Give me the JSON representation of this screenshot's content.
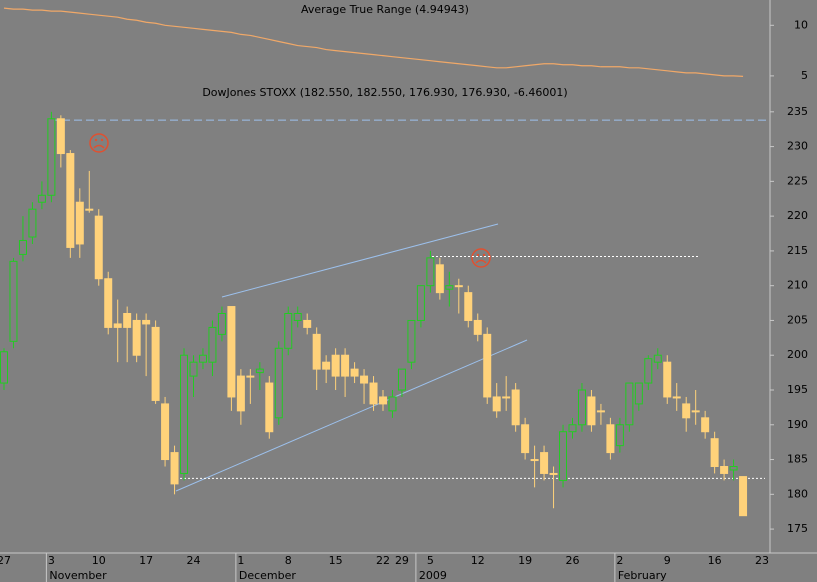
{
  "chart_data": [
    {
      "type": "line",
      "title": "Average True Range (4.94943)",
      "color": "#f0a868",
      "ylim": [
        4.1,
        12.5
      ],
      "yticks": [
        10,
        5
      ],
      "values": [
        11.7,
        11.6,
        11.6,
        11.5,
        11.5,
        11.4,
        11.4,
        11.3,
        11.2,
        11.1,
        11.0,
        10.9,
        10.8,
        10.6,
        10.5,
        10.3,
        10.2,
        10.0,
        9.9,
        9.8,
        9.7,
        9.6,
        9.5,
        9.4,
        9.3,
        9.1,
        9.0,
        8.8,
        8.6,
        8.4,
        8.2,
        8.0,
        7.9,
        7.8,
        7.6,
        7.5,
        7.4,
        7.3,
        7.2,
        7.1,
        7.0,
        6.9,
        6.8,
        6.7,
        6.6,
        6.5,
        6.4,
        6.3,
        6.2,
        6.1,
        6.0,
        5.9,
        5.8,
        5.8,
        5.9,
        6.0,
        6.1,
        6.2,
        6.2,
        6.1,
        6.1,
        6.0,
        6.0,
        5.9,
        5.9,
        5.9,
        5.8,
        5.8,
        5.7,
        5.6,
        5.5,
        5.4,
        5.3,
        5.3,
        5.2,
        5.1,
        5.0,
        5.0,
        4.95
      ]
    },
    {
      "type": "candlestick",
      "title": "DowJones STOXX (182.550, 182.550, 176.930, 176.930, -6.46001)",
      "up_color": "#22cc22",
      "down_color": "#ffd27a",
      "ylim": [
        173,
        239
      ],
      "yticks": [
        175,
        180,
        185,
        190,
        195,
        200,
        205,
        210,
        215,
        220,
        225,
        230,
        235
      ],
      "levels": [
        233.8,
        214.2,
        182.3
      ],
      "categories": [
        "27",
        null,
        null,
        null,
        null,
        "3",
        null,
        null,
        null,
        null,
        "10",
        null,
        null,
        null,
        null,
        "17",
        null,
        null,
        null,
        null,
        "24",
        null,
        null,
        null,
        null,
        "1",
        null,
        null,
        null,
        null,
        "8",
        null,
        null,
        null,
        null,
        "15",
        null,
        null,
        null,
        null,
        "22",
        null,
        "29",
        null,
        null,
        "5",
        null,
        null,
        null,
        null,
        "12",
        null,
        null,
        null,
        null,
        "19",
        null,
        null,
        null,
        null,
        "26",
        null,
        null,
        null,
        null,
        "2",
        null,
        null,
        null,
        null,
        "9",
        null,
        null,
        null,
        null,
        "16",
        null,
        null,
        null,
        null,
        "23"
      ],
      "months": [
        null,
        null,
        null,
        null,
        null,
        "November",
        null,
        null,
        null,
        null,
        null,
        null,
        null,
        null,
        null,
        null,
        null,
        null,
        null,
        null,
        null,
        null,
        null,
        null,
        null,
        "December",
        null,
        null,
        null,
        null,
        null,
        null,
        null,
        null,
        null,
        null,
        null,
        null,
        null,
        null,
        null,
        null,
        null,
        null,
        "2009",
        null,
        null,
        null,
        null,
        null,
        null,
        null,
        null,
        null,
        null,
        null,
        null,
        null,
        null,
        null,
        null,
        null,
        null,
        null,
        null,
        "February",
        null,
        null,
        null,
        null,
        null,
        null,
        null,
        null,
        null,
        null,
        null,
        null,
        null,
        null,
        null
      ],
      "open": [
        196,
        202,
        214.5,
        217,
        222,
        223,
        234,
        229,
        222,
        221,
        220,
        211,
        204.5,
        206,
        205,
        205,
        204,
        193,
        186,
        183,
        197,
        199,
        199,
        203,
        207,
        197,
        197,
        197.5,
        196,
        191,
        201,
        205,
        205,
        203,
        199,
        200,
        200,
        198,
        197,
        196,
        194,
        192,
        195,
        199,
        205,
        210,
        213,
        209.5,
        210,
        209,
        205,
        203,
        194,
        194,
        195,
        190,
        185,
        186,
        183,
        182,
        189,
        190,
        194,
        192,
        190,
        187,
        190,
        193,
        196,
        199,
        199,
        194,
        193,
        192,
        191,
        188,
        184,
        183.5,
        182.55,
        null,
        null
      ],
      "high": [
        201,
        214,
        220,
        222,
        225,
        235,
        234.5,
        229.5,
        224,
        226.5,
        221,
        212,
        208,
        207,
        206,
        206,
        205,
        194,
        187,
        201,
        200,
        201,
        205,
        207,
        207,
        198,
        198,
        199,
        197,
        202,
        207,
        207,
        206,
        204,
        200,
        201,
        201,
        199,
        198,
        197,
        195,
        195,
        198,
        205,
        210,
        215,
        214,
        212,
        211,
        210,
        206,
        204,
        196,
        197,
        196,
        191,
        187,
        187,
        184,
        190,
        191,
        196,
        195,
        193,
        191,
        191,
        196,
        196,
        200,
        201,
        200,
        196,
        194,
        195,
        192,
        189,
        185,
        185,
        182.55,
        null,
        null
      ],
      "low": [
        195,
        201,
        213.5,
        216,
        221,
        222,
        227,
        214,
        214,
        220.5,
        210,
        203,
        199,
        199,
        199,
        197,
        193,
        184,
        180,
        182,
        194,
        198,
        197,
        202,
        192,
        190,
        193,
        195,
        188,
        190,
        200,
        204,
        203,
        195,
        196,
        195,
        194,
        196,
        193,
        192,
        192,
        191,
        194,
        198,
        204,
        209,
        208,
        207,
        206,
        204,
        202,
        193,
        191,
        192,
        189,
        185,
        181,
        182,
        178,
        181,
        188,
        189,
        189,
        190,
        185,
        186,
        189,
        192,
        195,
        198,
        193,
        192,
        189,
        190,
        188,
        183,
        182,
        182,
        176.93,
        null,
        null
      ],
      "close": [
        200.5,
        213.5,
        216.5,
        221,
        223,
        234,
        229,
        215.5,
        216,
        221,
        211,
        204,
        204,
        204,
        200,
        204.5,
        193.5,
        185,
        181.5,
        200,
        199,
        200,
        204,
        206,
        194,
        192,
        197,
        198,
        189,
        201,
        206,
        206,
        204,
        198,
        198,
        197,
        197,
        197,
        196,
        193,
        193,
        194,
        198,
        205,
        210,
        214,
        209,
        210,
        210,
        205,
        203,
        194,
        192,
        194,
        190,
        186,
        185,
        183,
        183,
        189,
        190,
        195,
        190,
        192,
        186,
        190,
        196,
        196,
        199.5,
        200,
        194,
        194,
        191,
        192,
        189,
        184,
        183,
        184,
        176.93,
        null,
        null
      ]
    }
  ]
}
